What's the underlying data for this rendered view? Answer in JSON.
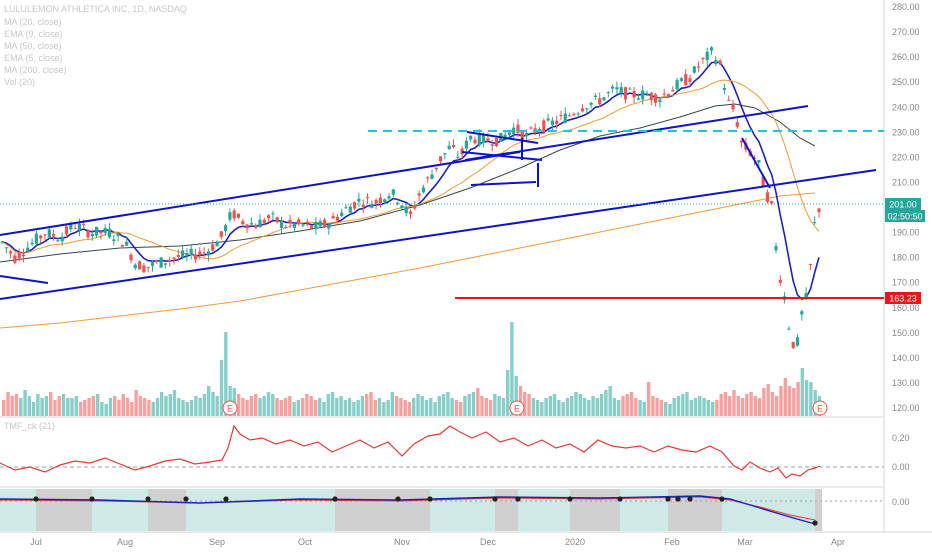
{
  "chart_info": {
    "title": "LULULEMON ATHLETICA INC, 1D, NASDAQ",
    "indicators": [
      "MA (20, close)",
      "EMA (9, close)",
      "MA (50, close)",
      "EMA (5, close)",
      "MA (200, close)",
      "Vol (20)"
    ],
    "tmf_label": "TMF_ck (21)"
  },
  "price_axis": {
    "ticks": [
      "280.00",
      "270.00",
      "260.00",
      "250.00",
      "240.00",
      "230.00",
      "220.00",
      "210.00",
      "200.00",
      "190.00",
      "180.00",
      "170.00",
      "160.00",
      "150.00",
      "140.00",
      "130.00",
      "120.00"
    ],
    "last_price": "201.00",
    "countdown": "02:50:50",
    "support_price": "163.23"
  },
  "tmf_axis": {
    "ticks": [
      "0.20",
      "0.00"
    ]
  },
  "osc_axis": {
    "ticks": [
      "0.00"
    ]
  },
  "time_axis": {
    "labels": [
      "Jul",
      "Aug",
      "Sep",
      "Oct",
      "Nov",
      "Dec",
      "2020",
      "Feb",
      "Mar",
      "Apr"
    ]
  },
  "earnings_marker": "E",
  "colors": {
    "up": "#26a69a",
    "down": "#ef5350",
    "trendline": "#0d14c7",
    "support": "#e8151b",
    "dashed_resistance": "#22c3e6",
    "ma200": "#f19a3c",
    "ma50": "#37474f",
    "ema": "#1e22b8",
    "tmf": "#e53935"
  },
  "chart_data": {
    "type": "candlestick",
    "x_range": [
      "2019-06-24",
      "2020-03-31"
    ],
    "y_range": [
      115,
      283
    ],
    "price_path": [
      [
        0,
        187
      ],
      [
        15,
        180
      ],
      [
        30,
        185
      ],
      [
        45,
        190
      ],
      [
        60,
        188
      ],
      [
        75,
        193
      ],
      [
        90,
        190
      ],
      [
        110,
        190
      ],
      [
        125,
        186
      ],
      [
        135,
        178
      ],
      [
        145,
        176
      ],
      [
        160,
        178
      ],
      [
        175,
        180
      ],
      [
        190,
        181
      ],
      [
        205,
        182
      ],
      [
        220,
        187
      ],
      [
        232,
        198
      ],
      [
        240,
        195
      ],
      [
        255,
        193
      ],
      [
        270,
        196
      ],
      [
        285,
        193
      ],
      [
        300,
        193
      ],
      [
        315,
        192
      ],
      [
        330,
        194
      ],
      [
        345,
        199
      ],
      [
        360,
        203
      ],
      [
        375,
        202
      ],
      [
        390,
        206
      ],
      [
        400,
        203
      ],
      [
        410,
        196
      ],
      [
        420,
        206
      ],
      [
        430,
        212
      ],
      [
        440,
        219
      ],
      [
        450,
        224
      ],
      [
        460,
        220
      ],
      [
        470,
        228
      ],
      [
        485,
        227
      ],
      [
        500,
        227
      ],
      [
        515,
        232
      ],
      [
        525,
        228
      ],
      [
        540,
        232
      ],
      [
        555,
        234
      ],
      [
        570,
        237
      ],
      [
        585,
        241
      ],
      [
        600,
        243
      ],
      [
        615,
        247
      ],
      [
        630,
        245
      ],
      [
        645,
        245
      ],
      [
        660,
        244
      ],
      [
        675,
        248
      ],
      [
        690,
        252
      ],
      [
        700,
        257
      ],
      [
        712,
        262
      ],
      [
        720,
        257
      ],
      [
        728,
        242
      ],
      [
        735,
        238
      ],
      [
        742,
        225
      ],
      [
        750,
        222
      ],
      [
        758,
        218
      ],
      [
        765,
        207
      ],
      [
        772,
        200
      ],
      [
        778,
        176
      ],
      [
        784,
        166
      ],
      [
        790,
        150
      ],
      [
        796,
        142
      ],
      [
        802,
        158
      ],
      [
        808,
        166
      ],
      [
        814,
        192
      ],
      [
        820,
        201
      ]
    ],
    "volume_heights": [
      16,
      24,
      20,
      22,
      18,
      26,
      20,
      14,
      22,
      18,
      20,
      24,
      16,
      20,
      22,
      18,
      18,
      20,
      14,
      16,
      18,
      20,
      22,
      14,
      12,
      18,
      20,
      16,
      22,
      18,
      14,
      26,
      20,
      18,
      16,
      14,
      18,
      24,
      20,
      22,
      26,
      18,
      16,
      14,
      16,
      20,
      18,
      22,
      30,
      24,
      20,
      56,
      84,
      30,
      28,
      22,
      18,
      16,
      20,
      22,
      18,
      20,
      24,
      22,
      18,
      16,
      18,
      20,
      14,
      16,
      18,
      22,
      20,
      16,
      18,
      14,
      22,
      24,
      18,
      20,
      16,
      18,
      14,
      16,
      20,
      22,
      24,
      16,
      18,
      14,
      16,
      24,
      20,
      18,
      16,
      14,
      18,
      22,
      20,
      16,
      18,
      14,
      20,
      22,
      24,
      18,
      16,
      14,
      20,
      22,
      24,
      28,
      20,
      18,
      16,
      22,
      20,
      18,
      46,
      94,
      40,
      30,
      24,
      22,
      18,
      16,
      14,
      18,
      20,
      22,
      16,
      14,
      18,
      20,
      24,
      22,
      18,
      16,
      20,
      18,
      22,
      26,
      30,
      18,
      16,
      20,
      22,
      24,
      18,
      16,
      14,
      34,
      20,
      18,
      16,
      14,
      12,
      18,
      20,
      22,
      24,
      16,
      18,
      20,
      18,
      16,
      14,
      16,
      22,
      24,
      20,
      26,
      20,
      18,
      22,
      24,
      20,
      18,
      28,
      32,
      24,
      20,
      30,
      38,
      30,
      28,
      34,
      48,
      36,
      34,
      26,
      20
    ],
    "support_level": 163.23,
    "last_price_value": 201.0
  }
}
